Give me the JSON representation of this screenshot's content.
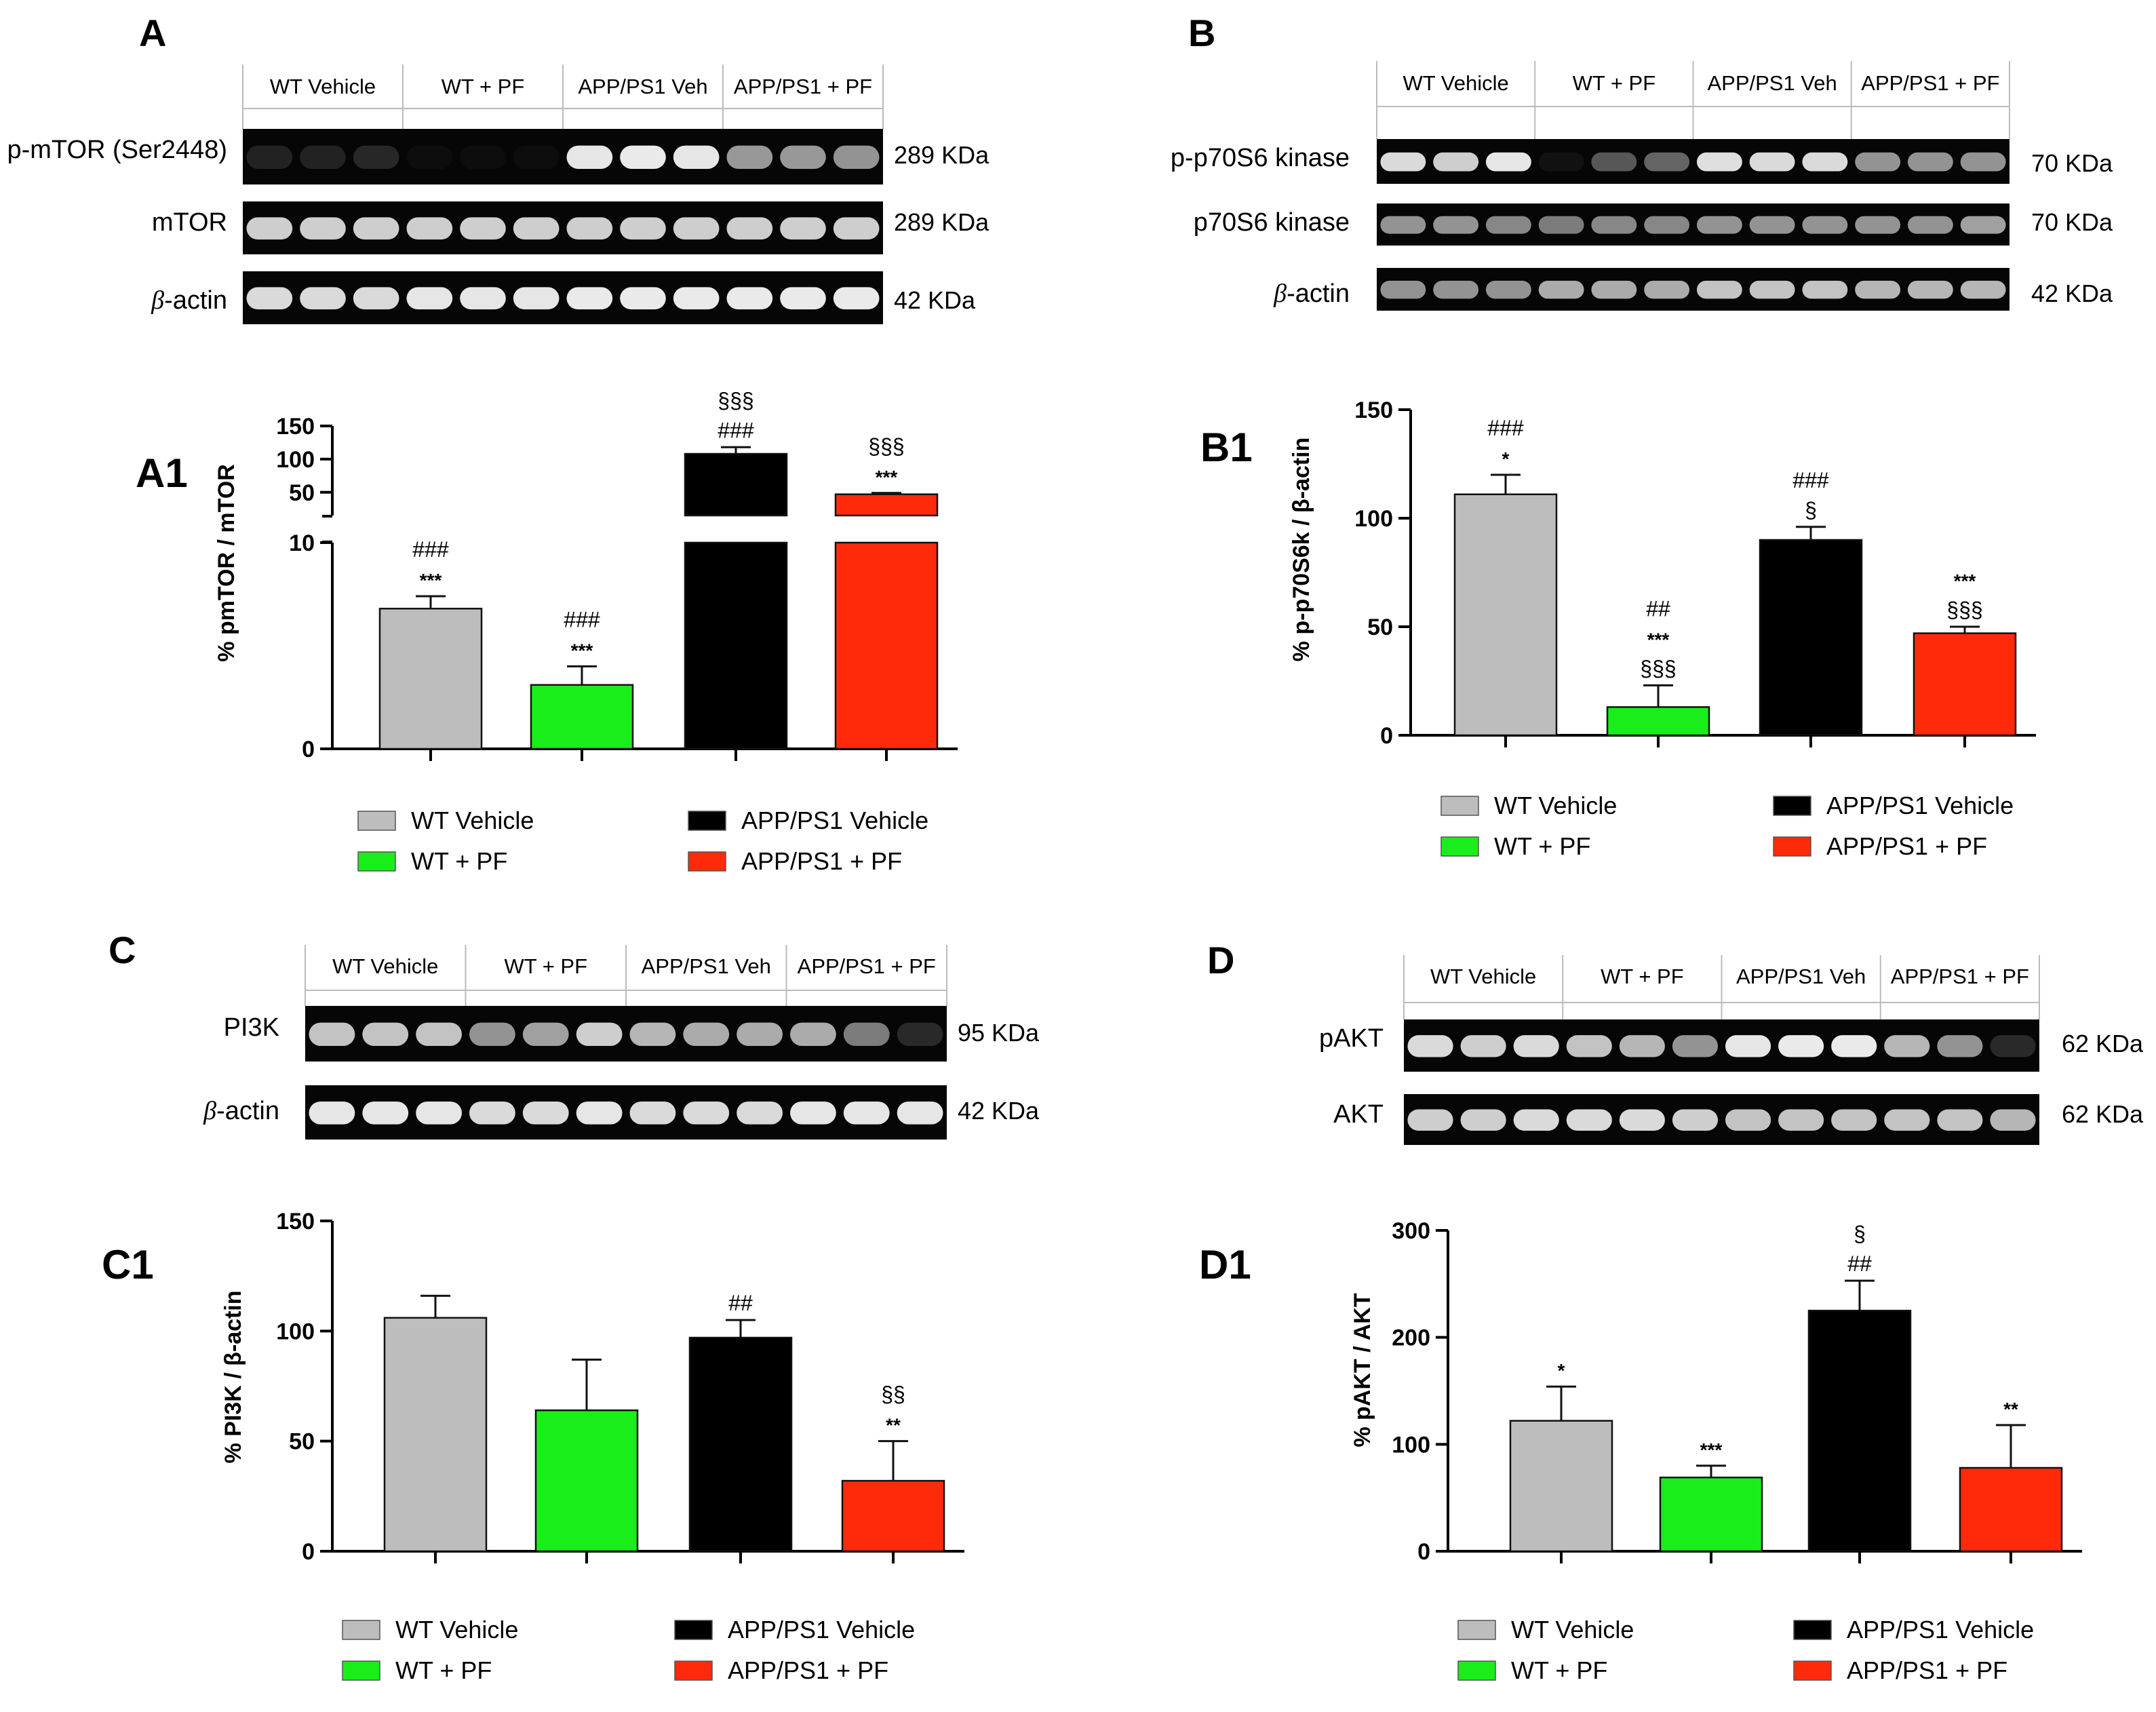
{
  "colors": {
    "wt_vehicle": "#bdbdbd",
    "wt_pf": "#1aee1a",
    "app_vehicle": "#000000",
    "app_pf": "#ff2a0a",
    "blot_bg": "#060606",
    "band": "#f2f2f2"
  },
  "legend": [
    {
      "label": "WT  Vehicle",
      "color_key": "wt_vehicle"
    },
    {
      "label": "WT + PF",
      "color_key": "wt_pf"
    },
    {
      "label": "APP/PS1 Vehicle",
      "color_key": "app_vehicle"
    },
    {
      "label": "APP/PS1 +  PF",
      "color_key": "app_pf"
    }
  ],
  "panels": [
    {
      "id": "A",
      "letter": "A",
      "blot": {
        "lanes": [
          "WT Vehicle",
          "WT + PF",
          "APP/PS1 Veh",
          "APP/PS1 + PF"
        ],
        "rows": [
          {
            "protein": "p-mTOR (Ser2448)",
            "kda": "289 KDa",
            "greek": false,
            "intensity": [
              [
                0.12,
                0.12,
                0.14
              ],
              [
                0.02,
                0.02,
                0.03
              ],
              [
                0.95,
                0.97,
                0.95
              ],
              [
                0.62,
                0.62,
                0.6
              ]
            ]
          },
          {
            "protein": "mTOR",
            "kda": "289 KDa",
            "greek": false,
            "intensity": [
              [
                0.85,
                0.85,
                0.85
              ],
              [
                0.85,
                0.85,
                0.85
              ],
              [
                0.85,
                0.85,
                0.85
              ],
              [
                0.85,
                0.85,
                0.85
              ]
            ]
          },
          {
            "protein": "-actin",
            "kda": "42 KDa",
            "greek": true,
            "intensity": [
              [
                0.9,
                0.9,
                0.9
              ],
              [
                0.95,
                0.95,
                0.95
              ],
              [
                0.97,
                0.97,
                0.97
              ],
              [
                0.97,
                0.97,
                0.97
              ]
            ]
          }
        ]
      }
    },
    {
      "id": "B",
      "letter": "B",
      "blot": {
        "lanes": [
          "WT Vehicle",
          "WT + PF",
          "APP/PS1 Veh",
          "APP/PS1 + PF"
        ],
        "rows": [
          {
            "protein": "p-p70S6 kinase",
            "kda": "70 KDa",
            "greek": false,
            "intensity": [
              [
                0.9,
                0.85,
                0.95
              ],
              [
                0.05,
                0.35,
                0.4
              ],
              [
                0.92,
                0.9,
                0.9
              ],
              [
                0.6,
                0.6,
                0.6
              ]
            ]
          },
          {
            "protein": "p70S6 kinase",
            "kda": "70  KDa",
            "greek": false,
            "intensity": [
              [
                0.6,
                0.6,
                0.55
              ],
              [
                0.5,
                0.55,
                0.55
              ],
              [
                0.6,
                0.6,
                0.6
              ],
              [
                0.6,
                0.6,
                0.65
              ]
            ]
          },
          {
            "protein": "-actin",
            "kda": "42 KDa",
            "greek": true,
            "intensity": [
              [
                0.6,
                0.6,
                0.6
              ],
              [
                0.7,
                0.7,
                0.7
              ],
              [
                0.8,
                0.8,
                0.8
              ],
              [
                0.75,
                0.75,
                0.75
              ]
            ]
          }
        ]
      }
    },
    {
      "id": "C",
      "letter": "C",
      "blot": {
        "lanes": [
          "WT Vehicle",
          "WT + PF",
          "APP/PS1 Veh",
          "APP/PS1 + PF"
        ],
        "rows": [
          {
            "protein": "PI3K",
            "kda": "95  KDa",
            "greek": false,
            "intensity": [
              [
                0.8,
                0.8,
                0.8
              ],
              [
                0.6,
                0.65,
                0.85
              ],
              [
                0.75,
                0.7,
                0.7
              ],
              [
                0.7,
                0.5,
                0.15
              ]
            ]
          },
          {
            "protein": "-actin",
            "kda": "42 KDa",
            "greek": true,
            "intensity": [
              [
                0.95,
                0.95,
                0.95
              ],
              [
                0.9,
                0.9,
                0.95
              ],
              [
                0.9,
                0.9,
                0.9
              ],
              [
                0.95,
                0.95,
                0.95
              ]
            ]
          }
        ]
      }
    },
    {
      "id": "D",
      "letter": "D",
      "blot": {
        "lanes": [
          "WT Vehicle",
          "WT + PF",
          "APP/PS1 Veh",
          "APP/PS1 + PF"
        ],
        "rows": [
          {
            "protein": "pAKT",
            "kda": "62 KDa",
            "greek": false,
            "intensity": [
              [
                0.9,
                0.85,
                0.9
              ],
              [
                0.8,
                0.75,
                0.6
              ],
              [
                0.95,
                0.97,
                0.97
              ],
              [
                0.75,
                0.6,
                0.15
              ]
            ]
          },
          {
            "protein": "AKT",
            "kda": "62 KDa",
            "greek": false,
            "intensity": [
              [
                0.85,
                0.85,
                0.9
              ],
              [
                0.9,
                0.9,
                0.85
              ],
              [
                0.8,
                0.8,
                0.8
              ],
              [
                0.8,
                0.8,
                0.75
              ]
            ]
          }
        ]
      }
    }
  ],
  "chart_data": [
    {
      "id": "A1",
      "label": "A1",
      "type": "bar",
      "ylabel": "% pmTOR / mTOR",
      "categories": [
        "WT  Vehicle",
        "WT + PF",
        "APP/PS1 Vehicle",
        "APP/PS1 +  PF"
      ],
      "values": [
        6.8,
        3.1,
        108,
        47
      ],
      "errors": [
        0.6,
        0.9,
        10,
        2
      ],
      "axis_break": true,
      "ylim_lower": [
        0,
        10
      ],
      "yticks_lower": [
        "0",
        "10"
      ],
      "ylim_upper": [
        15,
        150
      ],
      "yticks_upper": [
        "50",
        "100",
        "150"
      ],
      "annotations": [
        [
          "###",
          "***"
        ],
        [
          "###",
          "***"
        ],
        [
          "§§§",
          "###"
        ],
        [
          "§§§",
          "***"
        ]
      ]
    },
    {
      "id": "B1",
      "label": "B1",
      "type": "bar",
      "ylabel": "% p-p70S6k / β-actin",
      "categories": [
        "WT  Vehicle",
        "WT + PF",
        "APP/PS1 Vehicle",
        "APP/PS1 +  PF"
      ],
      "values": [
        111,
        13,
        90,
        47
      ],
      "errors": [
        9,
        10,
        6,
        3
      ],
      "ylim": [
        0,
        150
      ],
      "yticks": [
        "0",
        "50",
        "100",
        "150"
      ],
      "annotations": [
        [
          "###",
          "*"
        ],
        [
          "##",
          "***",
          "§§§"
        ],
        [
          "###",
          "§"
        ],
        [
          "***",
          "§§§"
        ]
      ]
    },
    {
      "id": "C1",
      "label": "C1",
      "type": "bar",
      "ylabel": "% PI3K / β-actin",
      "categories": [
        "WT  Vehicle",
        "WT + PF",
        "APP/PS1 Vehicle",
        "APP/PS1 +  PF"
      ],
      "values": [
        106,
        64,
        97,
        32
      ],
      "errors": [
        10,
        23,
        8,
        18
      ],
      "ylim": [
        0,
        150
      ],
      "yticks": [
        "0",
        "50",
        "100",
        "150"
      ],
      "annotations": [
        [],
        [],
        [
          "##"
        ],
        [
          "§§",
          "**"
        ]
      ]
    },
    {
      "id": "D1",
      "label": "D1",
      "type": "bar",
      "ylabel": "% pAKT / AKT",
      "categories": [
        "WT  Vehicle",
        "WT + PF",
        "APP/PS1 Vehicle",
        "APP/PS1 +  PF"
      ],
      "values": [
        122,
        69,
        225,
        78
      ],
      "errors": [
        32,
        11,
        28,
        40
      ],
      "ylim": [
        0,
        300
      ],
      "yticks": [
        "0",
        "100",
        "200",
        "300"
      ],
      "annotations": [
        [
          "*"
        ],
        [
          "***"
        ],
        [
          "§",
          "##"
        ],
        [
          "**"
        ]
      ]
    }
  ]
}
